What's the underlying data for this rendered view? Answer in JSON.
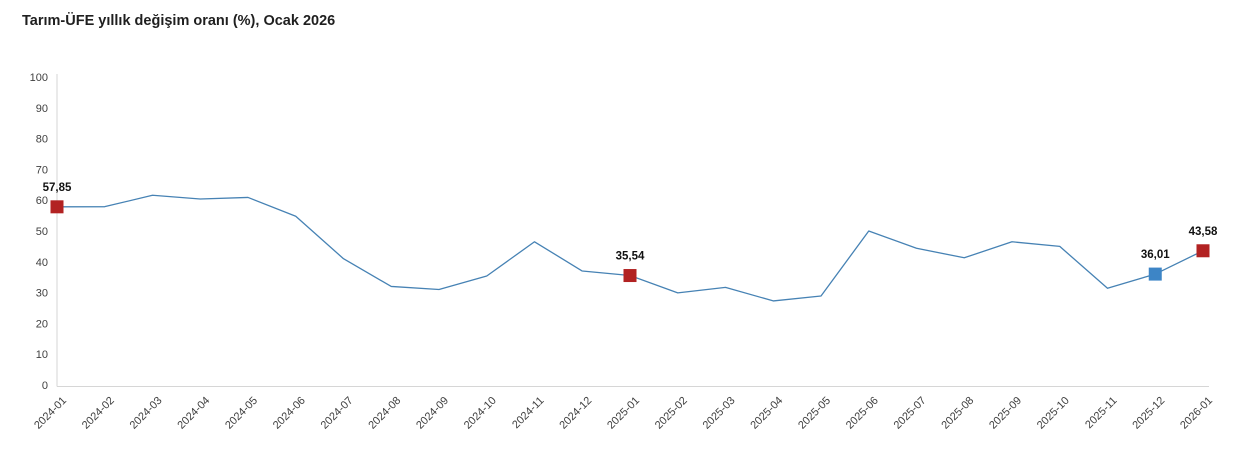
{
  "header": {
    "title": "Tarım-ÜFE yıllık değişim oranı (%), Ocak 2026"
  },
  "chart_data": {
    "type": "line",
    "title": "Tarım-ÜFE yıllık değişim oranı (%), Ocak 2026",
    "xlabel": "",
    "ylabel": "",
    "ylim": [
      0,
      100
    ],
    "yticks": [
      0,
      10,
      20,
      30,
      40,
      50,
      60,
      70,
      80,
      90,
      100
    ],
    "grid": false,
    "legend_position": "none",
    "x_label_rotation": -45,
    "categories": [
      "2024-01",
      "2024-02",
      "2024-03",
      "2024-04",
      "2024-05",
      "2024-06",
      "2024-07",
      "2024-08",
      "2024-09",
      "2024-10",
      "2024-11",
      "2024-12",
      "2025-01",
      "2025-02",
      "2025-03",
      "2025-04",
      "2025-05",
      "2025-06",
      "2025-07",
      "2025-08",
      "2025-09",
      "2025-10",
      "2025-11",
      "2025-12",
      "2026-01"
    ],
    "series": [
      {
        "name": "Tarım-ÜFE yıllık değişim oranı (%)",
        "color": "#4682b4",
        "values": [
          57.85,
          57.9,
          61.6,
          60.4,
          60.9,
          54.8,
          41.0,
          32.0,
          31.0,
          35.4,
          46.5,
          37.0,
          35.54,
          29.9,
          31.7,
          27.3,
          28.9,
          50.0,
          44.4,
          41.3,
          46.5,
          45.0,
          31.4,
          36.01,
          43.58
        ]
      }
    ],
    "point_labels": [
      {
        "category": "2024-01",
        "value": 57.85,
        "label": "57,85",
        "marker": "square",
        "marker_color": "#b22222"
      },
      {
        "category": "2025-01",
        "value": 35.54,
        "label": "35,54",
        "marker": "square",
        "marker_color": "#b22222"
      },
      {
        "category": "2025-12",
        "value": 36.01,
        "label": "36,01",
        "marker": "square",
        "marker_color": "#3d85c6"
      },
      {
        "category": "2026-01",
        "value": 43.58,
        "label": "43,58",
        "marker": "square",
        "marker_color": "#b22222"
      }
    ],
    "colors": {
      "line": "#4682b4",
      "marker_red": "#b22222",
      "marker_blue": "#3d85c6",
      "axis_line": "#d6d6d6",
      "tick_label": "#404040",
      "point_label": "#111111",
      "title": "#1f1f1f"
    }
  }
}
